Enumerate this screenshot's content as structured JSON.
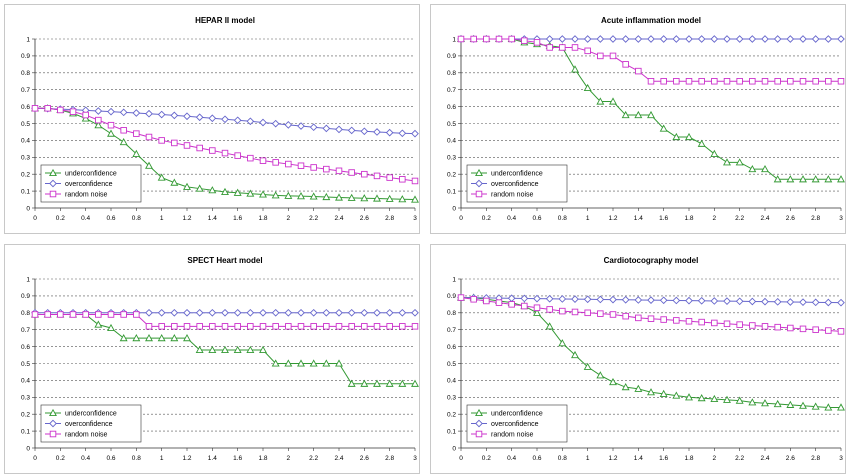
{
  "colors": {
    "underconfidence": "#339933",
    "overconfidence": "#6666cc",
    "random_noise": "#cc33cc"
  },
  "chart_data": [
    {
      "type": "line",
      "title": "HEPAR II model",
      "xlim": [
        0,
        3
      ],
      "ylim": [
        0,
        1
      ],
      "x_ticks": [
        "0",
        "0.2",
        "0.4",
        "0.6",
        "0.8",
        "1",
        "1.2",
        "1.4",
        "1.6",
        "1.8",
        "2",
        "2.2",
        "2.4",
        "2.6",
        "2.8",
        "3"
      ],
      "y_ticks": [
        "0",
        "0.1",
        "0.2",
        "0.3",
        "0.4",
        "0.5",
        "0.6",
        "0.7",
        "0.8",
        "0.9",
        "1"
      ],
      "grid": "horizontal dashed",
      "legend_position": "bottom-left",
      "x": [
        0,
        0.1,
        0.2,
        0.3,
        0.4,
        0.5,
        0.6,
        0.7,
        0.8,
        0.9,
        1,
        1.1,
        1.2,
        1.3,
        1.4,
        1.5,
        1.6,
        1.7,
        1.8,
        1.9,
        2,
        2.1,
        2.2,
        2.3,
        2.4,
        2.5,
        2.6,
        2.7,
        2.8,
        2.9,
        3
      ],
      "series": [
        {
          "name": "underconfidence",
          "marker": "triangle",
          "values": [
            0.59,
            0.59,
            0.58,
            0.56,
            0.53,
            0.49,
            0.44,
            0.39,
            0.32,
            0.25,
            0.18,
            0.15,
            0.125,
            0.115,
            0.105,
            0.095,
            0.09,
            0.085,
            0.08,
            0.075,
            0.072,
            0.07,
            0.068,
            0.065,
            0.062,
            0.06,
            0.058,
            0.056,
            0.054,
            0.052,
            0.05
          ]
        },
        {
          "name": "overconfidence",
          "marker": "diamond",
          "values": [
            0.59,
            0.588,
            0.585,
            0.582,
            0.578,
            0.574,
            0.57,
            0.566,
            0.562,
            0.558,
            0.553,
            0.548,
            0.543,
            0.537,
            0.531,
            0.525,
            0.519,
            0.513,
            0.506,
            0.499,
            0.492,
            0.485,
            0.478,
            0.471,
            0.465,
            0.459,
            0.454,
            0.45,
            0.446,
            0.442,
            0.44
          ]
        },
        {
          "name": "random noise",
          "marker": "square",
          "values": [
            0.59,
            0.59,
            0.58,
            0.57,
            0.55,
            0.52,
            0.49,
            0.46,
            0.44,
            0.42,
            0.4,
            0.385,
            0.37,
            0.355,
            0.34,
            0.325,
            0.31,
            0.295,
            0.28,
            0.27,
            0.26,
            0.25,
            0.24,
            0.23,
            0.22,
            0.21,
            0.2,
            0.19,
            0.18,
            0.17,
            0.16
          ]
        }
      ]
    },
    {
      "type": "line",
      "title": "Acute inflammation model",
      "xlim": [
        0,
        3
      ],
      "ylim": [
        0,
        1
      ],
      "x_ticks": [
        "0",
        "0.2",
        "0.4",
        "0.6",
        "0.8",
        "1",
        "1.2",
        "1.4",
        "1.6",
        "1.8",
        "2",
        "2.2",
        "2.4",
        "2.6",
        "2.8",
        "3"
      ],
      "y_ticks": [
        "0",
        "0.1",
        "0.2",
        "0.3",
        "0.4",
        "0.5",
        "0.6",
        "0.7",
        "0.8",
        "0.9",
        "1"
      ],
      "grid": "horizontal dashed",
      "legend_position": "bottom-left",
      "x": [
        0,
        0.1,
        0.2,
        0.3,
        0.4,
        0.5,
        0.6,
        0.7,
        0.8,
        0.9,
        1,
        1.1,
        1.2,
        1.3,
        1.4,
        1.5,
        1.6,
        1.7,
        1.8,
        1.9,
        2,
        2.1,
        2.2,
        2.3,
        2.4,
        2.5,
        2.6,
        2.7,
        2.8,
        2.9,
        3
      ],
      "series": [
        {
          "name": "underconfidence",
          "marker": "triangle",
          "values": [
            1,
            1,
            1,
            1,
            1,
            0.98,
            0.97,
            0.96,
            0.95,
            0.82,
            0.71,
            0.63,
            0.63,
            0.55,
            0.55,
            0.55,
            0.47,
            0.42,
            0.42,
            0.38,
            0.32,
            0.27,
            0.27,
            0.23,
            0.23,
            0.17,
            0.17,
            0.17,
            0.17,
            0.17,
            0.17
          ]
        },
        {
          "name": "overconfidence",
          "marker": "diamond",
          "values": [
            1,
            1,
            1,
            1,
            1,
            1,
            1,
            1,
            1,
            1,
            1,
            1,
            1,
            1,
            1,
            1,
            1,
            1,
            1,
            1,
            1,
            1,
            1,
            1,
            1,
            1,
            1,
            1,
            1,
            1,
            1
          ]
        },
        {
          "name": "random noise",
          "marker": "square",
          "values": [
            1,
            1,
            1,
            1,
            1,
            0.99,
            0.98,
            0.95,
            0.95,
            0.95,
            0.93,
            0.9,
            0.9,
            0.85,
            0.81,
            0.75,
            0.75,
            0.75,
            0.75,
            0.75,
            0.75,
            0.75,
            0.75,
            0.75,
            0.75,
            0.75,
            0.75,
            0.75,
            0.75,
            0.75,
            0.75
          ]
        }
      ]
    },
    {
      "type": "line",
      "title": "SPECT Heart model",
      "xlim": [
        0,
        3
      ],
      "ylim": [
        0,
        1
      ],
      "x_ticks": [
        "0",
        "0.2",
        "0.4",
        "0.6",
        "0.8",
        "1",
        "1.2",
        "1.4",
        "1.6",
        "1.8",
        "2",
        "2.2",
        "2.4",
        "2.6",
        "2.8",
        "3"
      ],
      "y_ticks": [
        "0",
        "0.1",
        "0.2",
        "0.3",
        "0.4",
        "0.5",
        "0.6",
        "0.7",
        "0.8",
        "0.9",
        "1"
      ],
      "grid": "horizontal dashed",
      "legend_position": "bottom-left",
      "x": [
        0,
        0.1,
        0.2,
        0.3,
        0.4,
        0.5,
        0.6,
        0.7,
        0.8,
        0.9,
        1,
        1.1,
        1.2,
        1.3,
        1.4,
        1.5,
        1.6,
        1.7,
        1.8,
        1.9,
        2,
        2.1,
        2.2,
        2.3,
        2.4,
        2.5,
        2.6,
        2.7,
        2.8,
        2.9,
        3
      ],
      "series": [
        {
          "name": "underconfidence",
          "marker": "triangle",
          "values": [
            0.79,
            0.79,
            0.79,
            0.79,
            0.79,
            0.73,
            0.71,
            0.65,
            0.65,
            0.65,
            0.65,
            0.65,
            0.65,
            0.58,
            0.58,
            0.58,
            0.58,
            0.58,
            0.58,
            0.5,
            0.5,
            0.5,
            0.5,
            0.5,
            0.5,
            0.38,
            0.38,
            0.38,
            0.38,
            0.38,
            0.38
          ]
        },
        {
          "name": "overconfidence",
          "marker": "diamond",
          "values": [
            0.8,
            0.8,
            0.8,
            0.8,
            0.8,
            0.8,
            0.8,
            0.8,
            0.8,
            0.8,
            0.8,
            0.8,
            0.8,
            0.8,
            0.8,
            0.8,
            0.8,
            0.8,
            0.8,
            0.8,
            0.8,
            0.8,
            0.8,
            0.8,
            0.8,
            0.8,
            0.8,
            0.8,
            0.8,
            0.8,
            0.8
          ]
        },
        {
          "name": "random noise",
          "marker": "square",
          "values": [
            0.79,
            0.79,
            0.79,
            0.79,
            0.79,
            0.79,
            0.79,
            0.79,
            0.79,
            0.72,
            0.72,
            0.72,
            0.72,
            0.72,
            0.72,
            0.72,
            0.72,
            0.72,
            0.72,
            0.72,
            0.72,
            0.72,
            0.72,
            0.72,
            0.72,
            0.72,
            0.72,
            0.72,
            0.72,
            0.72,
            0.72
          ]
        }
      ]
    },
    {
      "type": "line",
      "title": "Cardiotocography model",
      "xlim": [
        0,
        3
      ],
      "ylim": [
        0,
        1
      ],
      "x_ticks": [
        "0",
        "0.2",
        "0.4",
        "0.6",
        "0.8",
        "1",
        "1.2",
        "1.4",
        "1.6",
        "1.8",
        "2",
        "2.2",
        "2.4",
        "2.6",
        "2.8",
        "3"
      ],
      "y_ticks": [
        "0",
        "0.1",
        "0.2",
        "0.3",
        "0.4",
        "0.5",
        "0.6",
        "0.7",
        "0.8",
        "0.9",
        "1"
      ],
      "grid": "horizontal dashed",
      "legend_position": "bottom-left",
      "x": [
        0,
        0.1,
        0.2,
        0.3,
        0.4,
        0.5,
        0.6,
        0.7,
        0.8,
        0.9,
        1,
        1.1,
        1.2,
        1.3,
        1.4,
        1.5,
        1.6,
        1.7,
        1.8,
        1.9,
        2,
        2.1,
        2.2,
        2.3,
        2.4,
        2.5,
        2.6,
        2.7,
        2.8,
        2.9,
        3
      ],
      "series": [
        {
          "name": "underconfidence",
          "marker": "triangle",
          "values": [
            0.89,
            0.89,
            0.88,
            0.87,
            0.86,
            0.84,
            0.8,
            0.72,
            0.62,
            0.55,
            0.48,
            0.43,
            0.39,
            0.36,
            0.35,
            0.33,
            0.32,
            0.31,
            0.3,
            0.295,
            0.29,
            0.285,
            0.28,
            0.27,
            0.265,
            0.26,
            0.255,
            0.25,
            0.245,
            0.24,
            0.24
          ]
        },
        {
          "name": "overconfidence",
          "marker": "diamond",
          "values": [
            0.89,
            0.889,
            0.888,
            0.887,
            0.886,
            0.885,
            0.884,
            0.883,
            0.882,
            0.881,
            0.88,
            0.879,
            0.878,
            0.877,
            0.876,
            0.875,
            0.874,
            0.873,
            0.872,
            0.871,
            0.87,
            0.869,
            0.868,
            0.867,
            0.866,
            0.865,
            0.864,
            0.863,
            0.862,
            0.861,
            0.86
          ]
        },
        {
          "name": "random noise",
          "marker": "square",
          "values": [
            0.89,
            0.88,
            0.87,
            0.86,
            0.85,
            0.84,
            0.83,
            0.82,
            0.81,
            0.805,
            0.8,
            0.795,
            0.79,
            0.78,
            0.77,
            0.765,
            0.76,
            0.755,
            0.75,
            0.745,
            0.74,
            0.735,
            0.73,
            0.725,
            0.72,
            0.715,
            0.71,
            0.705,
            0.7,
            0.695,
            0.69
          ]
        }
      ]
    }
  ]
}
